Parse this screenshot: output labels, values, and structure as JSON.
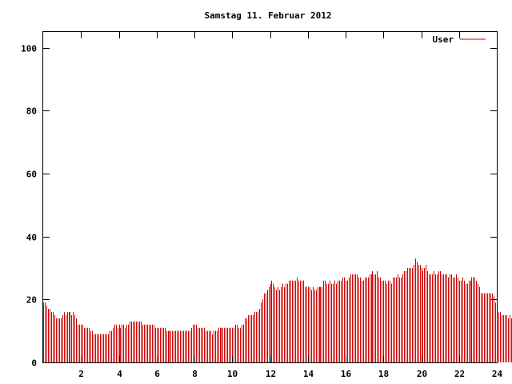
{
  "chart_data": {
    "type": "bar",
    "title": "Samstag 11. Februar 2012",
    "xlabel": "",
    "ylabel": "",
    "xlim": [
      0,
      24
    ],
    "ylim": [
      0,
      105
    ],
    "x_ticks": [
      2,
      4,
      6,
      8,
      10,
      12,
      14,
      16,
      18,
      20,
      22,
      24
    ],
    "y_ticks": [
      0,
      20,
      40,
      60,
      80,
      100
    ],
    "grid": false,
    "legend_position": "top-right",
    "series_color": "#cc0000",
    "series": [
      {
        "name": "User",
        "interval_minutes": 5,
        "values": [
          19,
          19,
          18,
          17,
          17,
          16,
          16,
          15,
          14,
          14,
          14,
          14,
          15,
          16,
          15,
          16,
          16,
          16,
          15,
          16,
          15,
          14,
          12,
          12,
          12,
          12,
          11,
          11,
          11,
          11,
          10,
          10,
          9,
          9,
          9,
          9,
          9,
          9,
          9,
          9,
          9,
          9,
          10,
          10,
          11,
          12,
          12,
          11,
          12,
          11,
          12,
          12,
          11,
          12,
          12,
          13,
          13,
          13,
          13,
          13,
          13,
          13,
          13,
          12,
          12,
          12,
          12,
          12,
          12,
          12,
          12,
          11,
          11,
          11,
          11,
          11,
          11,
          11,
          10,
          10,
          10,
          10,
          10,
          10,
          10,
          10,
          10,
          10,
          10,
          10,
          10,
          10,
          10,
          10,
          11,
          12,
          12,
          12,
          11,
          11,
          11,
          11,
          11,
          10,
          10,
          10,
          10,
          9,
          10,
          10,
          10,
          11,
          11,
          11,
          11,
          11,
          11,
          11,
          11,
          11,
          11,
          11,
          12,
          12,
          11,
          11,
          12,
          12,
          14,
          14,
          15,
          15,
          15,
          15,
          16,
          16,
          16,
          17,
          19,
          20,
          22,
          22,
          23,
          24,
          25,
          26,
          25,
          24,
          23,
          24,
          23,
          24,
          25,
          24,
          25,
          25,
          26,
          26,
          26,
          26,
          26,
          27,
          26,
          26,
          26,
          26,
          24,
          24,
          24,
          24,
          23,
          24,
          23,
          23,
          24,
          24,
          24,
          24,
          26,
          26,
          25,
          25,
          26,
          25,
          25,
          26,
          25,
          26,
          26,
          26,
          27,
          27,
          26,
          26,
          27,
          28,
          28,
          28,
          28,
          28,
          27,
          27,
          26,
          26,
          27,
          27,
          27,
          28,
          28,
          29,
          28,
          28,
          29,
          27,
          27,
          26,
          26,
          26,
          25,
          26,
          26,
          25,
          27,
          27,
          27,
          28,
          27,
          27,
          28,
          29,
          29,
          30,
          30,
          30,
          30,
          31,
          33,
          32,
          31,
          31,
          30,
          29,
          30,
          31,
          29,
          28,
          28,
          28,
          29,
          28,
          28,
          29,
          29,
          28,
          28,
          28,
          28,
          27,
          28,
          28,
          27,
          27,
          28,
          27,
          26,
          26,
          27,
          26,
          25,
          25,
          26,
          26,
          27,
          27,
          27,
          26,
          25,
          24,
          22,
          22,
          22,
          22,
          22,
          22,
          22,
          22,
          21,
          19,
          17,
          16,
          16,
          15,
          15,
          15,
          15,
          14,
          15,
          14
        ]
      }
    ]
  }
}
